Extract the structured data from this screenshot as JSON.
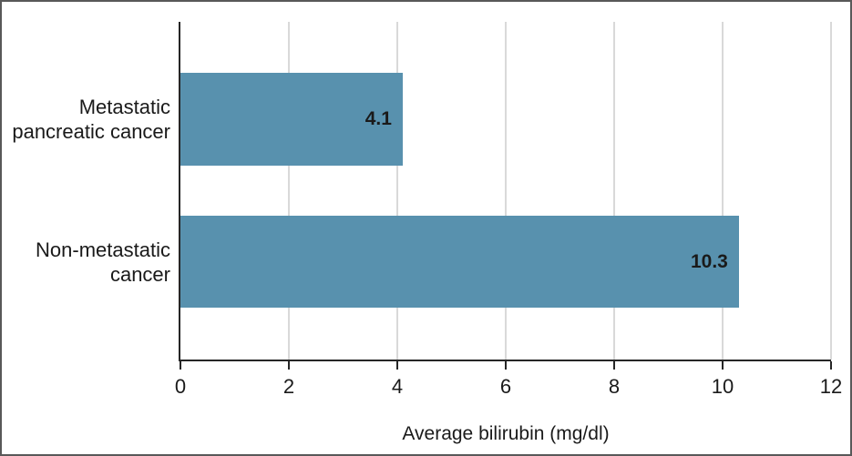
{
  "chart_data": {
    "type": "bar",
    "orientation": "horizontal",
    "categories": [
      "Metastatic\npancreatic cancer",
      "Non-metastatic\ncancer"
    ],
    "values": [
      4.1,
      10.3
    ],
    "value_labels": [
      "4.1",
      "10.3"
    ],
    "xlabel": "Average bilirubin (mg/dl)",
    "x_ticks": [
      0,
      2,
      4,
      6,
      8,
      10,
      12
    ],
    "xlim": [
      0,
      12
    ],
    "grid": true,
    "legend_position": "none",
    "bar_color": "#5891ae",
    "gridline_color": "#d9d9d9",
    "axis_color": "#262626",
    "text_color": "#1a1a1a",
    "frame_border_color": "#595959",
    "background_color": "#ffffff"
  }
}
